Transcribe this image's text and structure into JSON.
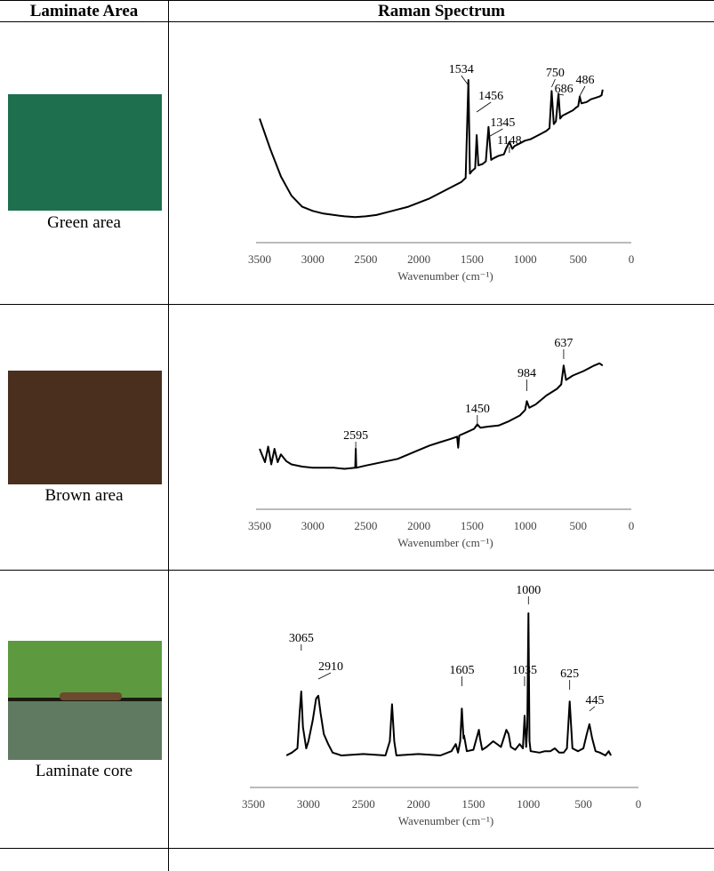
{
  "table": {
    "col1_header": "Laminate Area",
    "col2_header": "Raman Spectrum"
  },
  "rows": [
    {
      "caption": "Green area",
      "swatch_color": "#1e6f4e"
    },
    {
      "caption": "Brown area",
      "swatch_color": "#4a2f1f"
    },
    {
      "caption": "Laminate core",
      "swatch_colors": {
        "top": "#5d9a3f",
        "edge": "#1a1a10",
        "bottom": "#5f7a60"
      }
    }
  ],
  "chart_data": [
    {
      "type": "line",
      "xlabel": "Wavenumber (cm⁻¹)",
      "xlim": [
        3500,
        0
      ],
      "xticks": [
        3500,
        3000,
        2500,
        2000,
        1500,
        1000,
        500,
        0
      ],
      "peak_labels": [
        "1534",
        "1456",
        "1345",
        "1148",
        "750",
        "686",
        "486"
      ],
      "series": [
        {
          "x": [
            3500,
            3400,
            3300,
            3200,
            3100,
            3000,
            2900,
            2800,
            2700,
            2600,
            2500,
            2400,
            2300,
            2200,
            2100,
            2000,
            1900,
            1800,
            1700,
            1600,
            1560,
            1534,
            1520,
            1500,
            1470,
            1456,
            1440,
            1400,
            1370,
            1345,
            1320,
            1300,
            1250,
            1200,
            1180,
            1148,
            1120,
            1100,
            1050,
            1000,
            950,
            900,
            850,
            800,
            770,
            750,
            730,
            710,
            686,
            670,
            650,
            600,
            550,
            520,
            500,
            486,
            470,
            420,
            380,
            340,
            300,
            280,
            270
          ],
          "y": [
            0.72,
            0.5,
            0.3,
            0.16,
            0.08,
            0.05,
            0.03,
            0.02,
            0.01,
            0.005,
            0.01,
            0.02,
            0.04,
            0.06,
            0.08,
            0.11,
            0.14,
            0.18,
            0.22,
            0.26,
            0.29,
            1.0,
            0.32,
            0.34,
            0.36,
            0.6,
            0.38,
            0.39,
            0.41,
            0.66,
            0.42,
            0.43,
            0.45,
            0.46,
            0.5,
            0.55,
            0.5,
            0.52,
            0.54,
            0.56,
            0.57,
            0.59,
            0.61,
            0.63,
            0.65,
            0.92,
            0.68,
            0.7,
            0.9,
            0.72,
            0.74,
            0.76,
            0.78,
            0.8,
            0.81,
            0.88,
            0.83,
            0.84,
            0.86,
            0.87,
            0.88,
            0.89,
            0.93
          ]
        }
      ]
    },
    {
      "type": "line",
      "xlabel": "Wavenumber (cm⁻¹)",
      "xlim": [
        3500,
        0
      ],
      "xticks": [
        3500,
        3000,
        2500,
        2000,
        1500,
        1000,
        500,
        0
      ],
      "peak_labels": [
        "2595",
        "1450",
        "984",
        "637"
      ],
      "series": [
        {
          "x": [
            3500,
            3450,
            3420,
            3390,
            3360,
            3330,
            3300,
            3250,
            3200,
            3100,
            3000,
            2900,
            2800,
            2700,
            2600,
            2595,
            2590,
            2500,
            2400,
            2300,
            2200,
            2100,
            2000,
            1900,
            1800,
            1700,
            1640,
            1630,
            1620,
            1550,
            1480,
            1450,
            1420,
            1350,
            1250,
            1150,
            1050,
            1000,
            984,
            960,
            900,
            800,
            700,
            660,
            637,
            615,
            550,
            450,
            350,
            300,
            270
          ],
          "y": [
            0.2,
            0.08,
            0.22,
            0.06,
            0.2,
            0.08,
            0.15,
            0.09,
            0.06,
            0.04,
            0.03,
            0.03,
            0.03,
            0.02,
            0.03,
            0.2,
            0.03,
            0.05,
            0.07,
            0.09,
            0.11,
            0.15,
            0.19,
            0.23,
            0.26,
            0.29,
            0.31,
            0.21,
            0.32,
            0.35,
            0.38,
            0.42,
            0.39,
            0.4,
            0.41,
            0.45,
            0.5,
            0.55,
            0.63,
            0.57,
            0.6,
            0.68,
            0.74,
            0.78,
            0.95,
            0.82,
            0.86,
            0.9,
            0.95,
            0.97,
            0.95
          ]
        }
      ]
    },
    {
      "type": "line",
      "xlabel": "Wavenumber (cm⁻¹)",
      "xlim": [
        3500,
        0
      ],
      "xticks": [
        3500,
        3000,
        2500,
        2000,
        1500,
        1000,
        500,
        0
      ],
      "peak_labels": [
        "3065",
        "2910",
        "1605",
        "1035",
        "1000",
        "625",
        "445"
      ],
      "series": [
        {
          "x": [
            3200,
            3150,
            3100,
            3080,
            3065,
            3050,
            3020,
            3000,
            2960,
            2930,
            2910,
            2890,
            2860,
            2820,
            2780,
            2700,
            2500,
            2300,
            2260,
            2240,
            2220,
            2200,
            2000,
            1800,
            1700,
            1660,
            1640,
            1620,
            1605,
            1590,
            1585,
            1560,
            1500,
            1450,
            1440,
            1420,
            1380,
            1320,
            1250,
            1200,
            1180,
            1160,
            1120,
            1080,
            1050,
            1035,
            1020,
            1010,
            1000,
            990,
            980,
            900,
            850,
            800,
            760,
            720,
            680,
            650,
            625,
            600,
            550,
            500,
            470,
            445,
            420,
            390,
            350,
            300,
            270,
            250
          ],
          "y": [
            0.0,
            0.02,
            0.05,
            0.3,
            0.45,
            0.2,
            0.05,
            0.1,
            0.25,
            0.4,
            0.42,
            0.3,
            0.15,
            0.08,
            0.02,
            0.0,
            0.01,
            0.0,
            0.1,
            0.36,
            0.1,
            0.0,
            0.01,
            0.0,
            0.03,
            0.08,
            0.02,
            0.1,
            0.33,
            0.12,
            0.14,
            0.03,
            0.04,
            0.18,
            0.12,
            0.04,
            0.06,
            0.1,
            0.06,
            0.18,
            0.15,
            0.06,
            0.04,
            0.08,
            0.05,
            0.28,
            0.06,
            0.2,
            1.0,
            0.1,
            0.03,
            0.02,
            0.03,
            0.03,
            0.05,
            0.02,
            0.02,
            0.05,
            0.38,
            0.05,
            0.03,
            0.05,
            0.15,
            0.22,
            0.12,
            0.03,
            0.02,
            0.0,
            0.03,
            0.0
          ]
        }
      ]
    }
  ]
}
